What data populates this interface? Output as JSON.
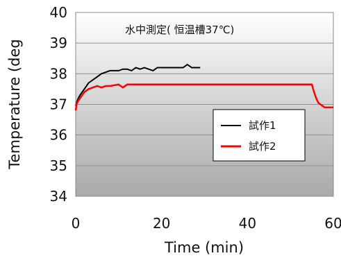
{
  "chart_data": {
    "type": "line",
    "title": "水中測定( 恒温槽37℃)",
    "xlabel": "Time (min)",
    "ylabel": "Temperature (deg",
    "xlim": [
      0,
      60
    ],
    "ylim": [
      34,
      40
    ],
    "xticks": [
      "0",
      "20",
      "40",
      "60"
    ],
    "yticks": [
      "34",
      "35",
      "36",
      "37",
      "38",
      "39",
      "40"
    ],
    "grid": "horizontal",
    "legend_position": "right-middle",
    "series": [
      {
        "name": "試作1",
        "color": "#000000",
        "x": [
          0,
          0.3,
          0.6,
          1,
          1.5,
          2,
          2.5,
          3,
          4,
          5,
          6,
          7,
          8,
          9,
          10,
          11,
          12,
          13,
          14,
          15,
          16,
          17,
          18,
          19,
          20,
          22,
          24,
          25,
          26,
          27,
          28,
          29
        ],
        "y": [
          36.95,
          37.1,
          37.2,
          37.3,
          37.4,
          37.5,
          37.6,
          37.7,
          37.8,
          37.9,
          38.0,
          38.05,
          38.1,
          38.1,
          38.1,
          38.15,
          38.15,
          38.1,
          38.2,
          38.15,
          38.2,
          38.15,
          38.1,
          38.2,
          38.2,
          38.2,
          38.2,
          38.2,
          38.3,
          38.2,
          38.2,
          38.2
        ]
      },
      {
        "name": "試作2",
        "color": "#ff0000",
        "x": [
          0,
          0.2,
          0.5,
          1,
          1.5,
          2,
          3,
          4,
          5,
          6,
          7,
          8,
          10,
          11,
          12,
          15,
          20,
          30,
          40,
          50,
          55,
          55.5,
          56,
          56.5,
          57,
          57.5,
          58,
          59,
          60
        ],
        "y": [
          36.8,
          37.0,
          37.1,
          37.2,
          37.3,
          37.4,
          37.5,
          37.55,
          37.6,
          37.55,
          37.6,
          37.6,
          37.65,
          37.55,
          37.65,
          37.65,
          37.65,
          37.65,
          37.65,
          37.65,
          37.65,
          37.4,
          37.2,
          37.05,
          37.0,
          36.95,
          36.9,
          36.9,
          36.9
        ]
      }
    ]
  }
}
